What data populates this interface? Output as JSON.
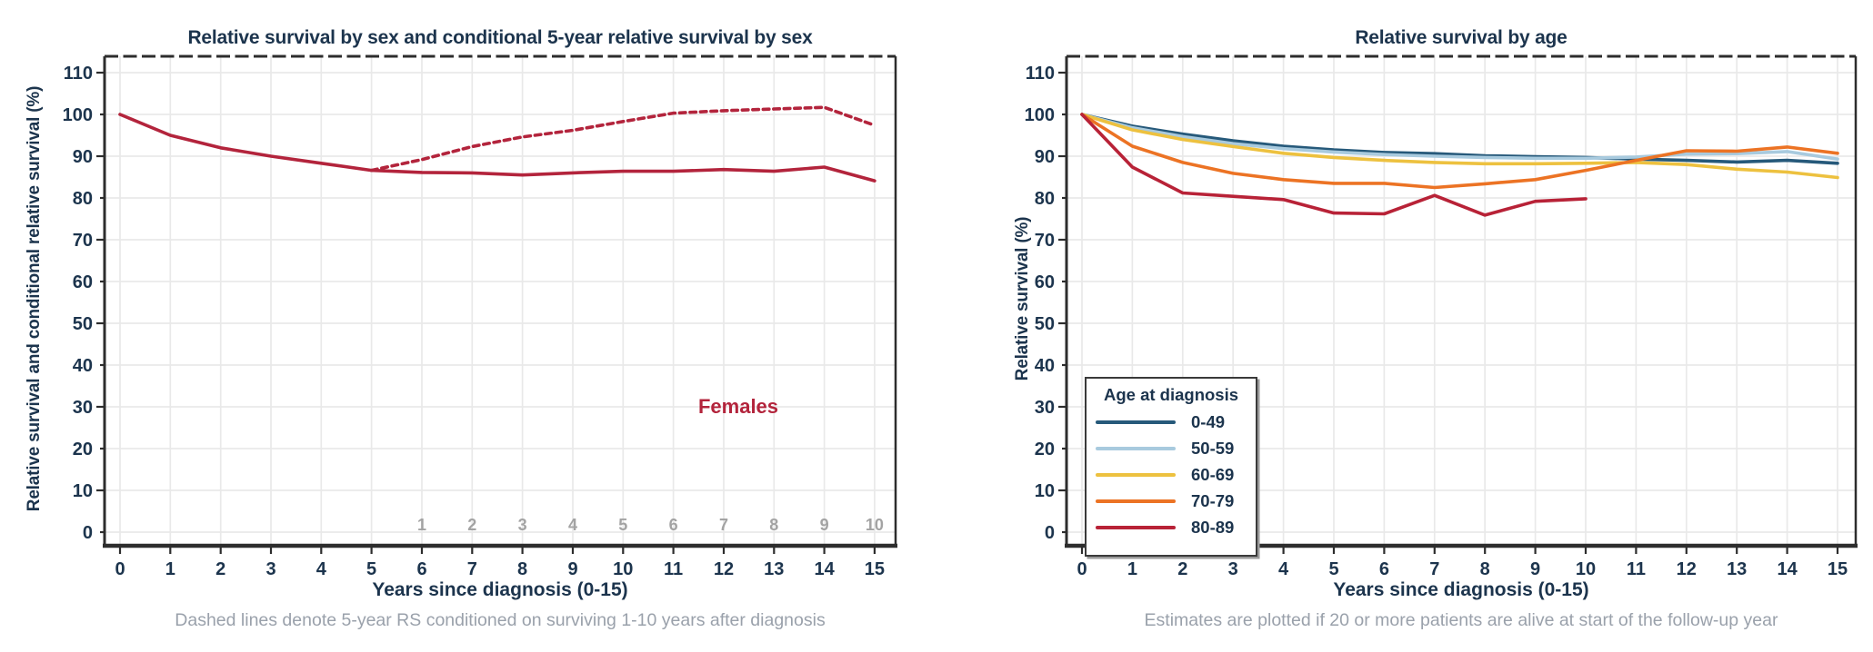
{
  "figure": {
    "background": "#ffffff",
    "text_color": "#1c344d",
    "grid_color": "#e9e9e9",
    "axis_color": "#2d2d2d",
    "caption_color": "#9aa1ab"
  },
  "chart_data": [
    {
      "type": "line",
      "title": "Relative survival by sex and conditional 5-year relative survival by sex",
      "xlabel": "Years since diagnosis (0-15)",
      "ylabel": "Relative survival and conditional relative survival (%)",
      "caption": "Dashed lines denote 5-year RS conditioned on surviving 1-10 years after diagnosis",
      "xlim": [
        0,
        15
      ],
      "ylim": [
        0,
        110
      ],
      "xticks": [
        0,
        1,
        2,
        3,
        4,
        5,
        6,
        7,
        8,
        9,
        10,
        11,
        12,
        13,
        14,
        15
      ],
      "yticks": [
        0,
        10,
        20,
        30,
        40,
        50,
        60,
        70,
        80,
        90,
        100,
        110
      ],
      "grid": true,
      "legend": null,
      "annotation": {
        "text": "Females",
        "x": 12.3,
        "y": 30,
        "color": "#b3243c"
      },
      "secondary_x_axis": {
        "description": "years survived after diagnosis (conditional RS)",
        "labels": [
          "1",
          "2",
          "3",
          "4",
          "5",
          "6",
          "7",
          "8",
          "9",
          "10"
        ],
        "at_x": [
          6,
          7,
          8,
          9,
          10,
          11,
          12,
          13,
          14,
          15
        ],
        "y": 0,
        "color": "#a3a3a3"
      },
      "series": [
        {
          "name": "Females relative survival",
          "style": "solid",
          "color": "#b3243c",
          "x": [
            0,
            1,
            2,
            3,
            4,
            5,
            6,
            7,
            8,
            9,
            10,
            11,
            12,
            13,
            14,
            15
          ],
          "values": [
            100,
            95,
            92,
            90,
            88.3,
            86.6,
            86.1,
            86,
            85.5,
            86,
            86.4,
            86.4,
            86.8,
            86.4,
            87.4,
            84.1
          ]
        },
        {
          "name": "Females conditional 5-year relative survival",
          "style": "dashed",
          "color": "#b3243c",
          "x": [
            5,
            6,
            7,
            8,
            9,
            10,
            11,
            12,
            13,
            14,
            15
          ],
          "values": [
            86.6,
            89.2,
            92.3,
            94.6,
            96.2,
            98.3,
            100.3,
            100.9,
            101.3,
            101.7,
            97.4
          ]
        }
      ]
    },
    {
      "type": "line",
      "title": "Relative survival by age",
      "xlabel": "Years since diagnosis (0-15)",
      "ylabel": "Relative survival (%)",
      "caption": "Estimates are plotted if 20 or more patients are alive at start of the follow-up year",
      "xlim": [
        0,
        15
      ],
      "ylim": [
        0,
        110
      ],
      "xticks": [
        0,
        1,
        2,
        3,
        4,
        5,
        6,
        7,
        8,
        9,
        10,
        11,
        12,
        13,
        14,
        15
      ],
      "yticks": [
        0,
        10,
        20,
        30,
        40,
        50,
        60,
        70,
        80,
        90,
        100,
        110
      ],
      "grid": true,
      "legend": {
        "title": "Age at diagnosis",
        "position": "bottom-left"
      },
      "series": [
        {
          "name": "0-49",
          "style": "solid",
          "color": "#26597a",
          "x": [
            0,
            1,
            2,
            3,
            4,
            5,
            6,
            7,
            8,
            9,
            10,
            11,
            12,
            13,
            14,
            15
          ],
          "values": [
            100,
            97.2,
            95.3,
            93.7,
            92.4,
            91.5,
            90.9,
            90.6,
            90.1,
            89.9,
            89.7,
            89.3,
            89,
            88.6,
            89,
            88.3
          ]
        },
        {
          "name": "50-59",
          "style": "solid",
          "color": "#a8cade",
          "x": [
            0,
            1,
            2,
            3,
            4,
            5,
            6,
            7,
            8,
            9,
            10,
            11,
            12,
            13,
            14,
            15
          ],
          "values": [
            100,
            96.8,
            94.7,
            93,
            91.8,
            91,
            90.4,
            90,
            89.7,
            89.5,
            89.5,
            89.8,
            90.5,
            90.6,
            91.1,
            89.3
          ]
        },
        {
          "name": "60-69",
          "style": "solid",
          "color": "#edc13f",
          "x": [
            0,
            1,
            2,
            3,
            4,
            5,
            6,
            7,
            8,
            9,
            10,
            11,
            12,
            13,
            14,
            15
          ],
          "values": [
            100,
            96.3,
            94,
            92.3,
            90.7,
            89.7,
            89,
            88.5,
            88.2,
            88.2,
            88.3,
            88.5,
            88,
            86.9,
            86.2,
            84.9
          ]
        },
        {
          "name": "70-79",
          "style": "solid",
          "color": "#ec7324",
          "x": [
            0,
            1,
            2,
            3,
            4,
            5,
            6,
            7,
            8,
            9,
            10,
            11,
            12,
            13,
            14,
            15
          ],
          "values": [
            100,
            92.4,
            88.5,
            85.9,
            84.4,
            83.5,
            83.5,
            82.5,
            83.4,
            84.4,
            86.6,
            89,
            91.3,
            91.2,
            92.2,
            90.7
          ]
        },
        {
          "name": "80-89",
          "style": "solid",
          "color": "#b82237",
          "x": [
            0,
            1,
            2,
            3,
            4,
            5,
            6,
            7,
            8,
            9,
            10
          ],
          "values": [
            100,
            87.4,
            81.2,
            80.4,
            79.6,
            76.4,
            76.2,
            80.6,
            75.9,
            79.2,
            79.8
          ]
        }
      ]
    }
  ]
}
